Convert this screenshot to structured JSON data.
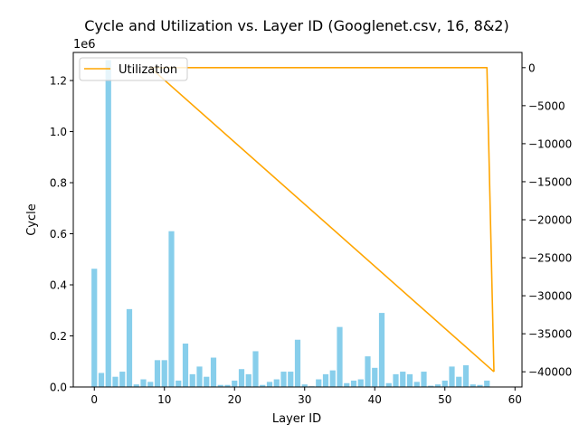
{
  "chart_data": {
    "type": "bar",
    "title": "Cycle and Utilization vs. Layer ID (Googlenet.csv, 16, 8&2)",
    "xlabel": "Layer ID",
    "ylabel": "Cycle",
    "y_offset_label": "1e6",
    "xlim": [
      -3,
      61
    ],
    "ylim": [
      0,
      1.31
    ],
    "y2lim": [
      -42000,
      2000
    ],
    "x_ticks": [
      0,
      10,
      20,
      30,
      40,
      50,
      60
    ],
    "y_ticks": [
      0.0,
      0.2,
      0.4,
      0.6,
      0.8,
      1.0,
      1.2
    ],
    "y_tick_labels": [
      "0.0",
      "0.2",
      "0.4",
      "0.6",
      "0.8",
      "1.0",
      "1.2"
    ],
    "y2_ticks": [
      0,
      -5000,
      -10000,
      -15000,
      -20000,
      -25000,
      -30000,
      -35000,
      -40000
    ],
    "y2_tick_labels": [
      "0",
      "−5000",
      "−10000",
      "−15000",
      "−20000",
      "−25000",
      "−30000",
      "−35000",
      "−40000"
    ],
    "bar_color": "#87ceeb",
    "line_color": "#ffa500",
    "legend_position": "top-left",
    "grid": false,
    "series": [
      {
        "axis": "left",
        "unit_scale": "1e6",
        "x": [
          0,
          1,
          2,
          3,
          4,
          5,
          6,
          7,
          8,
          9,
          10,
          11,
          12,
          13,
          14,
          15,
          16,
          17,
          18,
          19,
          20,
          21,
          22,
          23,
          24,
          25,
          26,
          27,
          28,
          29,
          30,
          31,
          32,
          33,
          34,
          35,
          36,
          37,
          38,
          39,
          40,
          41,
          42,
          43,
          44,
          45,
          46,
          47,
          48,
          49,
          50,
          51,
          52,
          53,
          54,
          55,
          56
        ],
        "values": [
          0.463,
          0.055,
          1.28,
          0.04,
          0.06,
          0.305,
          0.01,
          0.03,
          0.02,
          0.105,
          0.105,
          0.61,
          0.025,
          0.17,
          0.05,
          0.08,
          0.04,
          0.115,
          0.008,
          0.008,
          0.025,
          0.07,
          0.05,
          0.14,
          0.008,
          0.02,
          0.03,
          0.06,
          0.06,
          0.185,
          0.01,
          0.003,
          0.03,
          0.05,
          0.065,
          0.235,
          0.015,
          0.025,
          0.03,
          0.12,
          0.075,
          0.29,
          0.015,
          0.05,
          0.06,
          0.05,
          0.02,
          0.06,
          0.005,
          0.01,
          0.025,
          0.08,
          0.04,
          0.085,
          0.01,
          0.008,
          0.025
        ]
      },
      {
        "name": "Utilization",
        "axis": "right",
        "type": "line",
        "x": [
          57,
          8,
          49,
          56,
          57
        ],
        "values": [
          -40000,
          0,
          0,
          0,
          -40000
        ]
      }
    ]
  }
}
